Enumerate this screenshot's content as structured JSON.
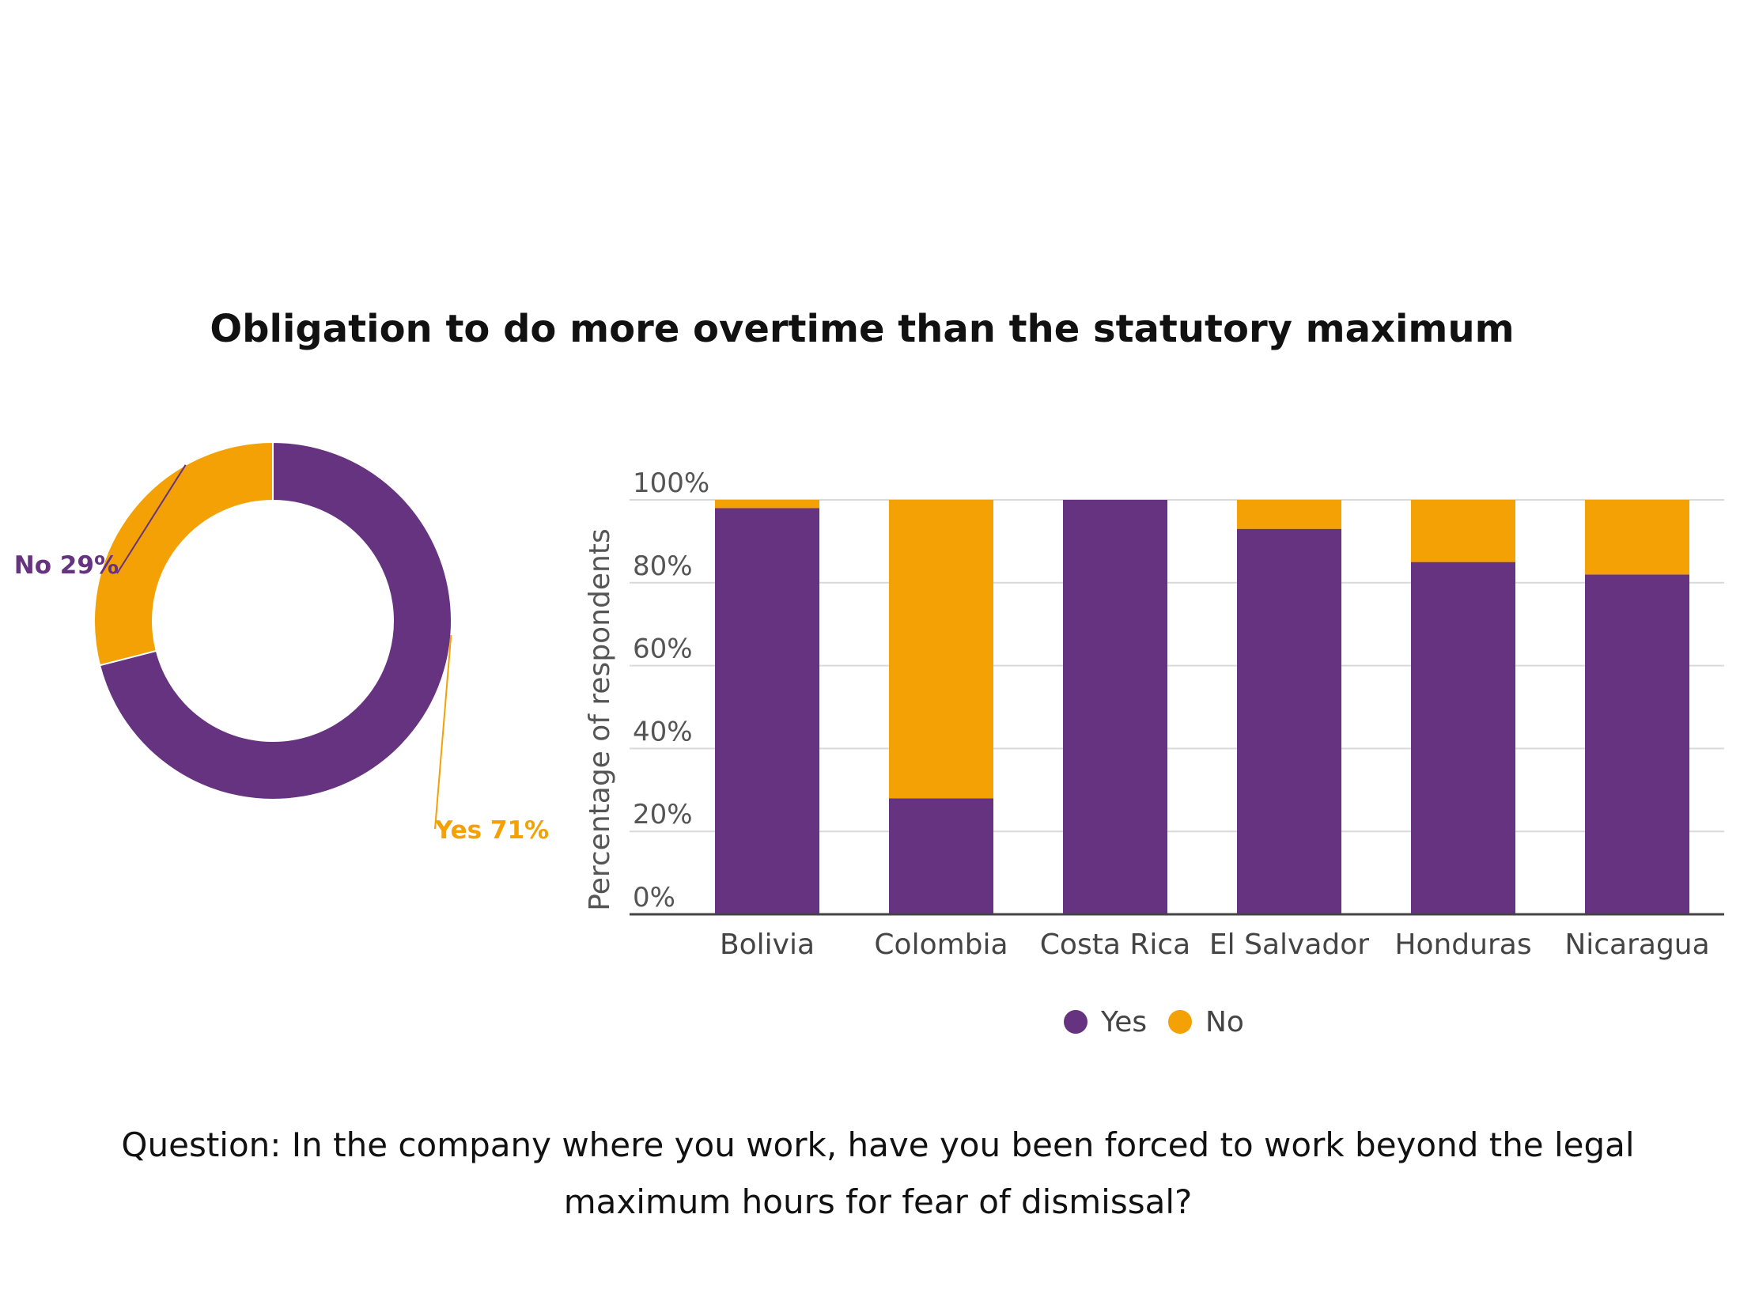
{
  "title": "Obligation to do more overtime than the statutory maximum",
  "question": "Question: In the company where you work, have you been forced to work beyond the legal maximum hours for fear of dismissal?",
  "colors": {
    "yes": "#663381",
    "no": "#F3A104",
    "grid": "#d9d9d9",
    "axis": "#444444"
  },
  "chart_data": [
    {
      "type": "pie",
      "subtype": "donut",
      "slices": [
        {
          "label": "No",
          "value": 29,
          "display": "No 29%"
        },
        {
          "label": "Yes",
          "value": 71,
          "display": "Yes 71%"
        }
      ]
    },
    {
      "type": "bar",
      "stacked": true,
      "categories": [
        "Bolivia",
        "Colombia",
        "Costa Rica",
        "El Salvador",
        "Honduras",
        "Nicaragua"
      ],
      "series": [
        {
          "name": "Yes",
          "values": [
            98,
            28,
            100,
            93,
            85,
            82
          ]
        },
        {
          "name": "No",
          "values": [
            2,
            72,
            0,
            7,
            15,
            18
          ]
        }
      ],
      "ylabel": "Percentage of respondents",
      "ylim": [
        0,
        100
      ],
      "yticks": [
        "0%",
        "20%",
        "40%",
        "60%",
        "80%",
        "100%"
      ],
      "grid": true,
      "legend": {
        "position": "bottom",
        "entries": [
          "Yes",
          "No"
        ]
      }
    }
  ]
}
